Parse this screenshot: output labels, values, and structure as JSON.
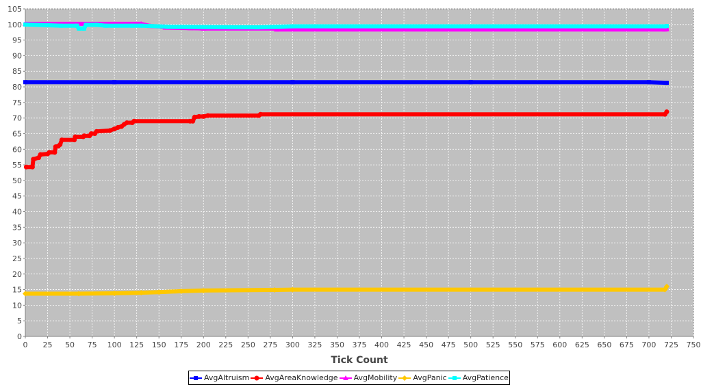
{
  "chart_data": {
    "type": "line",
    "title": "",
    "xlabel": "Tick Count",
    "ylabel": "",
    "xlim": [
      0,
      750
    ],
    "ylim": [
      0,
      105
    ],
    "xticks": [
      0,
      25,
      50,
      75,
      100,
      125,
      150,
      175,
      200,
      225,
      250,
      275,
      300,
      325,
      350,
      375,
      400,
      425,
      450,
      475,
      500,
      525,
      550,
      575,
      600,
      625,
      650,
      675,
      700,
      725,
      750
    ],
    "yticks": [
      0,
      5,
      10,
      15,
      20,
      25,
      30,
      35,
      40,
      45,
      50,
      55,
      60,
      65,
      70,
      75,
      80,
      85,
      90,
      95,
      100,
      105
    ],
    "grid": true,
    "legend_position": "bottom",
    "series": [
      {
        "name": "AvgAltruism",
        "color": "#0000ff",
        "marker": "square",
        "points": [
          [
            0,
            81.5
          ],
          [
            100,
            81.5
          ],
          [
            300,
            81.5
          ],
          [
            500,
            81.5
          ],
          [
            700,
            81.5
          ],
          [
            720,
            81.3
          ]
        ]
      },
      {
        "name": "AvgAreaKnowledge",
        "color": "#ff0000",
        "marker": "circle",
        "points": [
          [
            1,
            54.3
          ],
          [
            8,
            54.3
          ],
          [
            9,
            56.8
          ],
          [
            15,
            57.3
          ],
          [
            17,
            58.3
          ],
          [
            25,
            58.5
          ],
          [
            27,
            59.0
          ],
          [
            33,
            59.0
          ],
          [
            34,
            60.8
          ],
          [
            37,
            61.0
          ],
          [
            39,
            61.5
          ],
          [
            41,
            63.0
          ],
          [
            55,
            63.0
          ],
          [
            56,
            64.0
          ],
          [
            65,
            64.0
          ],
          [
            66,
            64.3
          ],
          [
            72,
            64.3
          ],
          [
            74,
            65.0
          ],
          [
            78,
            65.0
          ],
          [
            80,
            65.7
          ],
          [
            95,
            66.0
          ],
          [
            100,
            66.5
          ],
          [
            104,
            67.0
          ],
          [
            108,
            67.3
          ],
          [
            111,
            68.0
          ],
          [
            114,
            68.5
          ],
          [
            120,
            68.5
          ],
          [
            122,
            69.0
          ],
          [
            185,
            69.0
          ],
          [
            188,
            69.0
          ],
          [
            190,
            70.3
          ],
          [
            195,
            70.5
          ],
          [
            200,
            70.5
          ],
          [
            205,
            70.8
          ],
          [
            262,
            70.8
          ],
          [
            264,
            71.2
          ],
          [
            718,
            71.2
          ],
          [
            720,
            72.0
          ]
        ]
      },
      {
        "name": "AvgMobility",
        "color": "#ff00ff",
        "marker": "triangle",
        "points": [
          [
            0,
            100.2
          ],
          [
            130,
            100.2
          ],
          [
            140,
            99.5
          ],
          [
            155,
            99.3
          ],
          [
            157,
            99.0
          ],
          [
            185,
            98.8
          ],
          [
            190,
            98.8
          ],
          [
            200,
            98.7
          ],
          [
            280,
            98.7
          ],
          [
            282,
            98.4
          ],
          [
            718,
            98.4
          ],
          [
            720,
            98.5
          ]
        ]
      },
      {
        "name": "AvgPanic",
        "color": "#ffc800",
        "marker": "diamond",
        "points": [
          [
            0,
            13.7
          ],
          [
            60,
            13.7
          ],
          [
            100,
            13.8
          ],
          [
            130,
            14.0
          ],
          [
            150,
            14.2
          ],
          [
            175,
            14.5
          ],
          [
            200,
            14.7
          ],
          [
            280,
            14.9
          ],
          [
            300,
            15.0
          ],
          [
            718,
            15.0
          ],
          [
            720,
            16.0
          ]
        ]
      },
      {
        "name": "AvgPatience",
        "color": "#00ffff",
        "marker": "square",
        "points": [
          [
            0,
            100.0
          ],
          [
            40,
            99.6
          ],
          [
            58,
            99.6
          ],
          [
            60,
            98.7
          ],
          [
            66,
            98.7
          ],
          [
            68,
            99.9
          ],
          [
            80,
            99.9
          ],
          [
            90,
            99.6
          ],
          [
            120,
            99.6
          ],
          [
            130,
            99.6
          ],
          [
            160,
            99.3
          ],
          [
            200,
            99.2
          ],
          [
            260,
            99.1
          ],
          [
            300,
            99.4
          ],
          [
            718,
            99.4
          ],
          [
            720,
            99.5
          ]
        ]
      }
    ]
  }
}
